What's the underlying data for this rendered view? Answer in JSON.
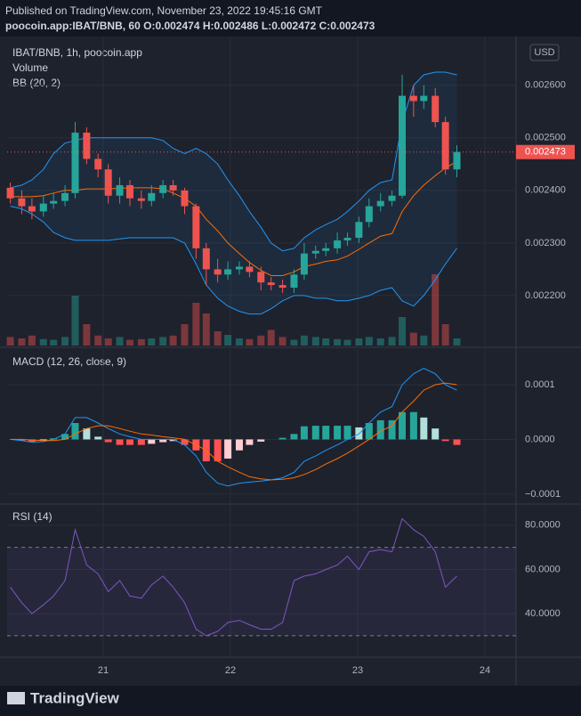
{
  "header": {
    "published": "Published on TradingView.com, November 23, 2022 19:45:16 GMT",
    "symbol_line": "poocoin.app:IBAT/BNB, 60 O:0.002474 H:0.002486 L:0.002472 C:0.002473",
    "currency": "USD",
    "brand": "TradingView"
  },
  "chart_data": [
    {
      "type": "candlestick",
      "title": "IBAT/BNB, 1h, poocoin.app",
      "volume_label": "Volume",
      "bb_label": "BB (20, 2)",
      "x": [
        20.27,
        20.36,
        20.44,
        20.53,
        20.61,
        20.7,
        20.78,
        20.87,
        20.96,
        21.04,
        21.13,
        21.21,
        21.3,
        21.38,
        21.47,
        21.55,
        21.64,
        21.73,
        21.81,
        21.9,
        21.98,
        22.07,
        22.15,
        22.24,
        22.32,
        22.41,
        22.5,
        22.58,
        22.67,
        22.75,
        22.84,
        22.92,
        23.01,
        23.09,
        23.18,
        23.27,
        23.35,
        23.44,
        23.52,
        23.61,
        23.69,
        23.78
      ],
      "open": [
        0.002405,
        0.002385,
        0.00237,
        0.00236,
        0.002375,
        0.00238,
        0.002395,
        0.00251,
        0.00246,
        0.00244,
        0.00239,
        0.00241,
        0.002385,
        0.00238,
        0.002395,
        0.00241,
        0.0024,
        0.00237,
        0.00229,
        0.00225,
        0.00224,
        0.00225,
        0.002255,
        0.002245,
        0.002225,
        0.00222,
        0.002215,
        0.00224,
        0.00228,
        0.002285,
        0.00229,
        0.002305,
        0.00231,
        0.00234,
        0.00237,
        0.00238,
        0.00239,
        0.00258,
        0.00257,
        0.00258,
        0.00253,
        0.00244
      ],
      "high": [
        0.002415,
        0.0024,
        0.002385,
        0.00239,
        0.002395,
        0.00241,
        0.00253,
        0.00252,
        0.00247,
        0.00245,
        0.002425,
        0.00242,
        0.0024,
        0.00241,
        0.00242,
        0.00242,
        0.002405,
        0.002375,
        0.0023,
        0.00227,
        0.002265,
        0.002265,
        0.002265,
        0.002255,
        0.002235,
        0.00223,
        0.00225,
        0.0023,
        0.002295,
        0.0023,
        0.00232,
        0.00232,
        0.00235,
        0.002385,
        0.002395,
        0.0024,
        0.00262,
        0.0026,
        0.0026,
        0.002595,
        0.00254,
        0.002486
      ],
      "low": [
        0.002375,
        0.002355,
        0.002345,
        0.00235,
        0.002365,
        0.00237,
        0.002385,
        0.00245,
        0.002425,
        0.002375,
        0.002375,
        0.00237,
        0.002365,
        0.00237,
        0.002385,
        0.00239,
        0.002355,
        0.00227,
        0.00222,
        0.002225,
        0.00223,
        0.00224,
        0.002235,
        0.00221,
        0.00221,
        0.002205,
        0.002205,
        0.00223,
        0.00227,
        0.002275,
        0.00228,
        0.002295,
        0.0023,
        0.00233,
        0.00236,
        0.00237,
        0.002385,
        0.00254,
        0.002555,
        0.00252,
        0.00243,
        0.002425
      ],
      "close": [
        0.002385,
        0.00237,
        0.00236,
        0.002375,
        0.00238,
        0.002395,
        0.00251,
        0.00246,
        0.00244,
        0.00239,
        0.00241,
        0.002385,
        0.00238,
        0.002395,
        0.00241,
        0.0024,
        0.00237,
        0.00229,
        0.00225,
        0.00224,
        0.00225,
        0.002255,
        0.002245,
        0.002225,
        0.00222,
        0.002215,
        0.00224,
        0.00228,
        0.002285,
        0.00229,
        0.002305,
        0.00231,
        0.00234,
        0.00237,
        0.00238,
        0.00239,
        0.00258,
        0.00257,
        0.00258,
        0.00253,
        0.00244,
        0.002473
      ],
      "volume": [
        12,
        10,
        14,
        9,
        8,
        12,
        70,
        30,
        14,
        10,
        12,
        8,
        9,
        10,
        12,
        14,
        30,
        60,
        45,
        20,
        15,
        10,
        9,
        14,
        22,
        12,
        8,
        14,
        12,
        10,
        9,
        8,
        10,
        12,
        10,
        12,
        40,
        18,
        14,
        100,
        30,
        10
      ],
      "bb_upper": [
        0.002405,
        0.00241,
        0.00242,
        0.00244,
        0.00247,
        0.00249,
        0.002495,
        0.0025,
        0.0025,
        0.0025,
        0.0025,
        0.0025,
        0.0025,
        0.0025,
        0.002495,
        0.00248,
        0.00247,
        0.00248,
        0.00247,
        0.00245,
        0.00242,
        0.00239,
        0.00236,
        0.00233,
        0.0023,
        0.002285,
        0.00229,
        0.00231,
        0.002325,
        0.002335,
        0.002345,
        0.00236,
        0.00238,
        0.0024,
        0.002415,
        0.00242,
        0.00253,
        0.0026,
        0.00262,
        0.002625,
        0.002625,
        0.00262
      ],
      "bb_basis": [
        0.002388,
        0.002388,
        0.002388,
        0.00239,
        0.002395,
        0.0024,
        0.0024,
        0.002403,
        0.002403,
        0.002403,
        0.002404,
        0.002405,
        0.002405,
        0.002405,
        0.002403,
        0.002395,
        0.002385,
        0.00237,
        0.002345,
        0.002323,
        0.0023,
        0.00228,
        0.002263,
        0.002248,
        0.002238,
        0.002238,
        0.002245,
        0.002255,
        0.00226,
        0.002265,
        0.002268,
        0.002275,
        0.002288,
        0.0023,
        0.002313,
        0.002318,
        0.00236,
        0.00239,
        0.00241,
        0.002428,
        0.002443,
        0.002455
      ],
      "bb_lower": [
        0.00237,
        0.002365,
        0.002355,
        0.00234,
        0.00232,
        0.00231,
        0.002305,
        0.002305,
        0.002305,
        0.002305,
        0.002308,
        0.00231,
        0.00231,
        0.00231,
        0.00231,
        0.00231,
        0.0023,
        0.00226,
        0.00222,
        0.002195,
        0.00218,
        0.00217,
        0.002165,
        0.002165,
        0.002175,
        0.00219,
        0.0022,
        0.0022,
        0.002195,
        0.002195,
        0.00219,
        0.00219,
        0.002195,
        0.0022,
        0.00221,
        0.002215,
        0.00219,
        0.00218,
        0.0022,
        0.00223,
        0.00226,
        0.00229
      ],
      "up_color": "#26a69a",
      "down_color": "#ef5350",
      "bb_color": "#2196f3",
      "basis_color": "#ff6d00",
      "last_price": 0.002473,
      "xlim": [
        20.245,
        24.245
      ],
      "xticks": [
        21,
        22,
        23,
        24
      ],
      "ylim": [
        0.002105,
        0.002686
      ],
      "yticks": [
        {
          "value": 0.0022,
          "label": "0.002200"
        },
        {
          "value": 0.0023,
          "label": "0.002300"
        },
        {
          "value": 0.0024,
          "label": "0.002400"
        },
        {
          "value": 0.0025,
          "label": "0.002500"
        },
        {
          "value": 0.0026,
          "label": "0.002600"
        }
      ],
      "grid": true
    },
    {
      "type": "macd",
      "title": "MACD (12, 26, close, 9)",
      "macd": [
        0,
        -2e-06,
        -5e-06,
        -4e-06,
        0,
        1e-05,
        4e-05,
        4e-05,
        3e-05,
        2e-05,
        1e-05,
        5e-06,
        0,
        0,
        0,
        0,
        -1e-05,
        -3e-05,
        -6e-05,
        -8e-05,
        -8.5e-05,
        -8e-05,
        -7.8e-05,
        -7.6e-05,
        -7.4e-05,
        -7e-05,
        -6e-05,
        -4e-05,
        -3e-05,
        -2e-05,
        -1e-05,
        0,
        1e-05,
        3e-05,
        5e-05,
        6e-05,
        0.0001,
        0.00012,
        0.00013,
        0.00012,
        0.0001,
        9e-05
      ],
      "signal": [
        0,
        0,
        -1e-06,
        -2e-06,
        -2e-06,
        0,
        1e-05,
        2e-05,
        2.5e-05,
        2.5e-05,
        2e-05,
        1.5e-05,
        1e-05,
        8e-06,
        5e-06,
        3e-06,
        0,
        -1e-05,
        -2e-05,
        -4e-05,
        -5e-05,
        -6e-05,
        -6.8e-05,
        -7.2e-05,
        -7.4e-05,
        -7.3e-05,
        -7e-05,
        -6.4e-05,
        -5.5e-05,
        -4.5e-05,
        -3.5e-05,
        -2.5e-05,
        -1.2e-05,
        0,
        1.5e-05,
        2.5e-05,
        5e-05,
        7e-05,
        9e-05,
        0.0001,
        0.000103,
        0.0001
      ],
      "histogram": [
        0,
        -2e-06,
        -4e-06,
        -2e-06,
        2e-06,
        1e-05,
        3e-05,
        2e-05,
        5e-06,
        -5e-06,
        -1e-05,
        -1e-05,
        -1e-05,
        -8e-06,
        -5e-06,
        -3e-06,
        -1e-05,
        -2e-05,
        -4e-05,
        -4e-05,
        -3.5e-05,
        -2e-05,
        -1e-05,
        -4e-06,
        0,
        3e-06,
        1e-05,
        2.4e-05,
        2.5e-05,
        2.5e-05,
        2.5e-05,
        2.5e-05,
        2.2e-05,
        3e-05,
        3.5e-05,
        3.5e-05,
        5e-05,
        5e-05,
        4e-05,
        2e-05,
        -3e-06,
        -1e-05
      ],
      "macd_color": "#2196f3",
      "signal_color": "#ff6d00",
      "hist_colors": {
        "up_rising": "#26a69a",
        "up_falling": "#b2dfdb",
        "down_falling": "#ff5252",
        "down_rising": "#ffcdd2"
      },
      "ylim": [
        -0.000118,
        0.000165
      ],
      "yticks": [
        {
          "value": -0.0001,
          "label": "−0.0001"
        },
        {
          "value": 0,
          "label": "0.0000"
        },
        0.0001
      ],
      "grid": true
    },
    {
      "type": "line",
      "title": "RSI (14)",
      "values": [
        52,
        45,
        40,
        44,
        48,
        55,
        78,
        62,
        58,
        50,
        55,
        48,
        47,
        53,
        57,
        52,
        45,
        33,
        30,
        32,
        36,
        37,
        35,
        33,
        33,
        36,
        55,
        57,
        58,
        60,
        62,
        66,
        60,
        68,
        69,
        68,
        83,
        78,
        75,
        68,
        52,
        57
      ],
      "color": "#7e57c2",
      "bands": [
        30,
        70
      ],
      "ylim": [
        20.3,
        89.2
      ],
      "yticks": [
        {
          "value": 40,
          "label": "40.0000"
        },
        {
          "value": 60,
          "label": "60.0000"
        },
        {
          "value": 80,
          "label": "80.0000"
        }
      ],
      "grid": true
    }
  ]
}
